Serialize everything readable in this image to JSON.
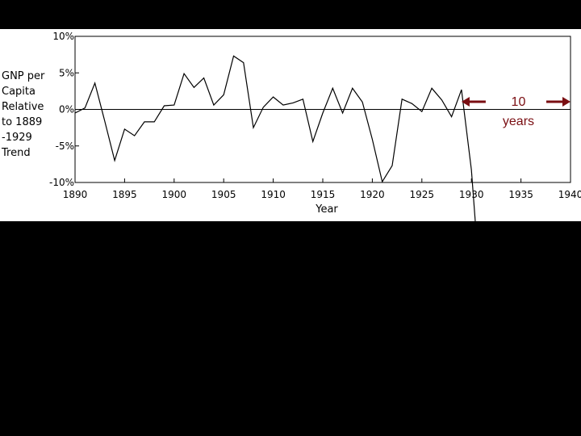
{
  "chart_data": {
    "type": "line",
    "title": "",
    "xlabel": "Year",
    "ylabel": "GNP per Capita Relative to 1889 -1929 Trend",
    "ylabel_lines": [
      "GNP per",
      "Capita",
      "Relative",
      "to 1889",
      "-1929",
      "Trend"
    ],
    "xlim": [
      1890,
      1940
    ],
    "ylim": [
      -10,
      10
    ],
    "x_ticks": [
      1890,
      1895,
      1900,
      1905,
      1910,
      1915,
      1920,
      1925,
      1930,
      1935,
      1940
    ],
    "x_tick_labels": [
      "1890",
      "1895",
      "1900",
      "1905",
      "1910",
      "1915",
      "1920",
      "1925",
      "1930",
      "1935",
      "1940"
    ],
    "y_ticks": [
      10,
      5,
      0,
      -5,
      -10
    ],
    "y_tick_labels": [
      "10%",
      "5%",
      "0%",
      "-5%",
      "-10%"
    ],
    "grid": false,
    "series": [
      {
        "x": [
          1890,
          1891,
          1892,
          1893,
          1894,
          1895,
          1896,
          1897,
          1898,
          1899,
          1900,
          1901,
          1902,
          1903,
          1904,
          1905,
          1906,
          1907,
          1908,
          1909,
          1910,
          1911,
          1912,
          1913,
          1914,
          1915,
          1916,
          1917,
          1918,
          1919,
          1920,
          1921,
          1922,
          1923,
          1924,
          1925,
          1926,
          1927,
          1928,
          1929,
          1930,
          1930.4
        ],
        "values": [
          -0.5,
          0.2,
          3.6,
          -1.6,
          -7.0,
          -2.7,
          -3.6,
          -1.7,
          -1.7,
          0.5,
          0.6,
          4.9,
          3.0,
          4.3,
          0.6,
          2.0,
          7.3,
          6.4,
          -2.5,
          0.3,
          1.7,
          0.6,
          0.9,
          1.4,
          -4.4,
          -0.5,
          2.9,
          -0.5,
          2.9,
          1.0,
          -4.1,
          -9.9,
          -7.7,
          1.4,
          0.8,
          -0.3,
          2.9,
          1.3,
          -1.0,
          2.7,
          -8.3,
          -15.5
        ]
      }
    ],
    "annotations": [
      {
        "text_lines": [
          "10",
          "years"
        ],
        "x_start": 1929,
        "x_end": 1940
      }
    ]
  }
}
